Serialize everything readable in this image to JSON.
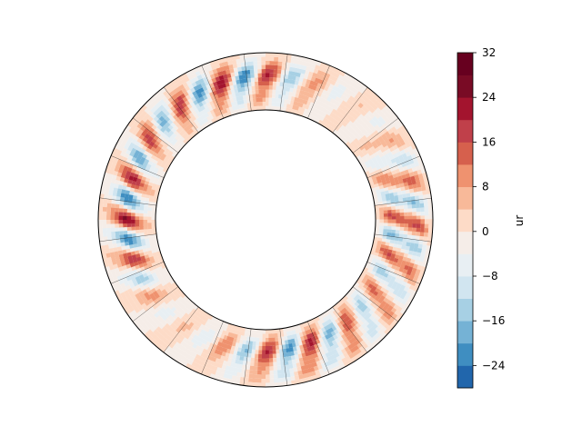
{
  "chart_data": {
    "type": "heatmap",
    "projection": "annulus",
    "title": "",
    "colorbar": {
      "label": "ur",
      "colormap": "RdBu_r",
      "min": -28,
      "max": 32,
      "levels": [
        -28,
        -24,
        -20,
        -16,
        -12,
        -8,
        -4,
        0,
        4,
        8,
        12,
        16,
        20,
        24,
        28,
        32
      ],
      "tick_values": [
        -24,
        -16,
        -8,
        0,
        8,
        16,
        24,
        32
      ],
      "tick_labels": [
        "−24",
        "−16",
        "−8",
        "0",
        "8",
        "16",
        "24",
        "32"
      ],
      "colors": [
        "#2166ac",
        "#3f8ec1",
        "#75b2d5",
        "#a7d0e4",
        "#d1e5f0",
        "#e8eff3",
        "#f5ede8",
        "#fddbc7",
        "#f8b999",
        "#ef926f",
        "#d6604d",
        "#c0404a",
        "#a3142e",
        "#790b25",
        "#67001f"
      ]
    },
    "field": {
      "radial_range": [
        0.65,
        1.0
      ],
      "azimuthal_mode_count": 20,
      "peak_positive": 31,
      "peak_negative": -27,
      "contour_style": "solid for positive, dashed for negative"
    }
  }
}
